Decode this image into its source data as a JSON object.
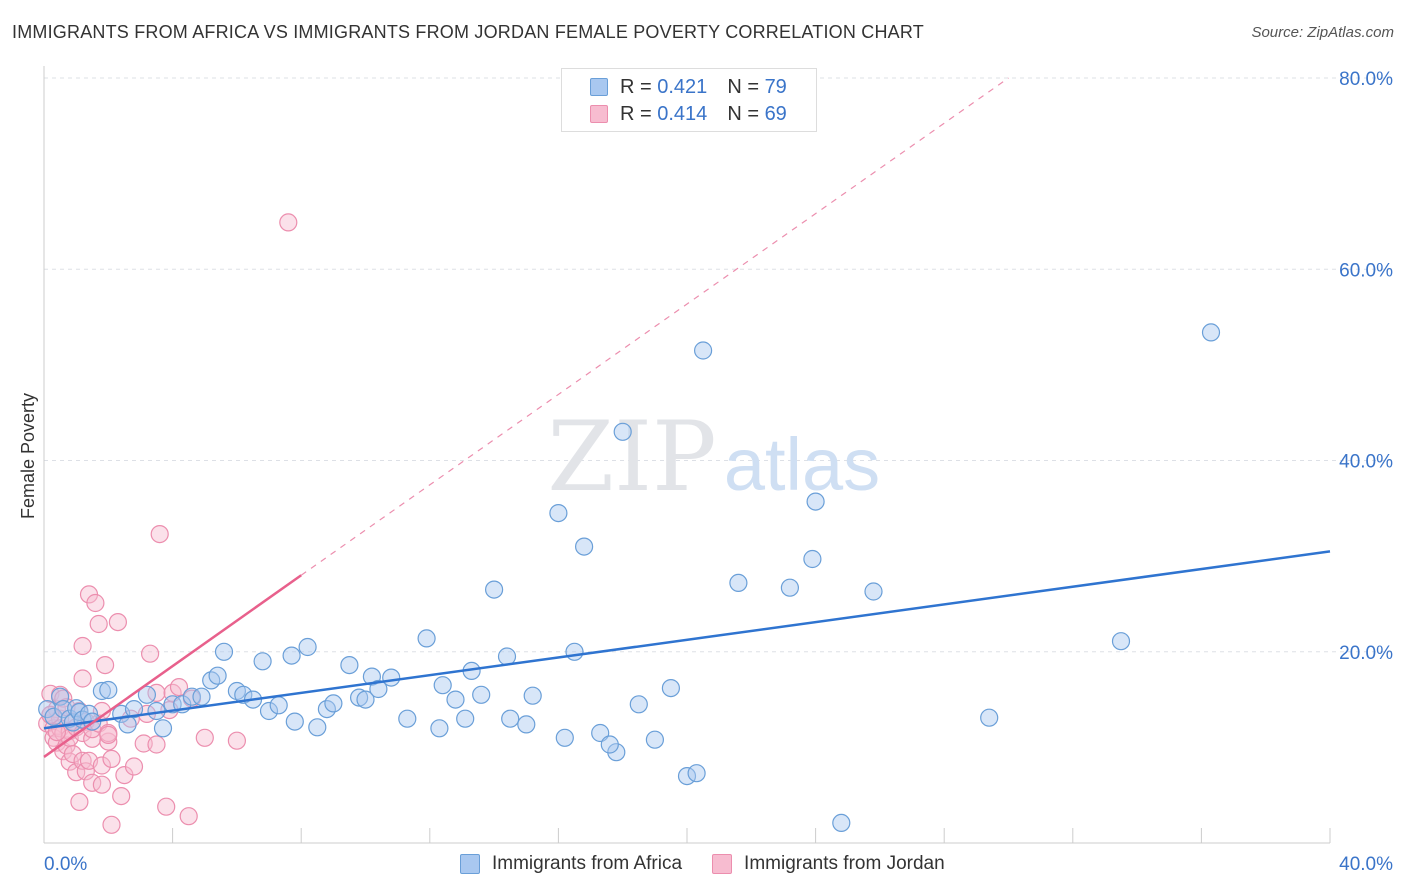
{
  "header": {
    "title": "IMMIGRANTS FROM AFRICA VS IMMIGRANTS FROM JORDAN FEMALE POVERTY CORRELATION CHART",
    "source": "Source: ZipAtlas.com"
  },
  "watermark": {
    "zip": "ZIP",
    "atlas": "atlas"
  },
  "legend": {
    "r_label": "R =",
    "n_label": "N =",
    "rows": [
      {
        "r": "0.421",
        "n": "79"
      },
      {
        "r": "0.414",
        "n": "69"
      }
    ]
  },
  "bottom_legend": {
    "africa": "Immigrants from Africa",
    "jordan": "Immigrants from Jordan"
  },
  "colors": {
    "africa_fill": "#a9c8f0",
    "africa_stroke": "#6a9fd8",
    "africa_line": "#2f74d0",
    "jordan_fill": "#f7bcd0",
    "jordan_stroke": "#ec8eae",
    "jordan_line": "#e8608c",
    "grid": "#dde0e6",
    "axis_label": "#3a74c9"
  },
  "chart_data": {
    "type": "scatter",
    "title": "IMMIGRANTS FROM AFRICA VS IMMIGRANTS FROM JORDAN FEMALE POVERTY CORRELATION CHART",
    "xlabel": "",
    "ylabel": "Female Poverty",
    "xlim": [
      0,
      40
    ],
    "ylim": [
      0,
      80
    ],
    "x_tick_labels": [
      "0.0%",
      "40.0%"
    ],
    "y_ticks": [
      20,
      40,
      60,
      80
    ],
    "y_tick_labels": [
      "20.0%",
      "40.0%",
      "60.0%",
      "80.0%"
    ],
    "grid": true,
    "series": [
      {
        "name": "Immigrants from Africa",
        "r": 0.421,
        "n": 79,
        "trend": {
          "x": [
            0,
            40
          ],
          "y": [
            12.0,
            30.5
          ]
        },
        "points": [
          [
            0.1,
            14.0
          ],
          [
            0.3,
            13.2
          ],
          [
            0.5,
            15.3
          ],
          [
            0.6,
            14.0
          ],
          [
            0.8,
            13.0
          ],
          [
            0.9,
            12.6
          ],
          [
            1.0,
            14.1
          ],
          [
            1.1,
            13.7
          ],
          [
            1.2,
            12.9
          ],
          [
            1.4,
            13.5
          ],
          [
            1.5,
            12.7
          ],
          [
            1.8,
            15.9
          ],
          [
            2.0,
            16.0
          ],
          [
            2.4,
            13.5
          ],
          [
            2.6,
            12.4
          ],
          [
            2.8,
            14.0
          ],
          [
            3.2,
            15.5
          ],
          [
            3.5,
            13.8
          ],
          [
            3.7,
            12.0
          ],
          [
            4.0,
            14.5
          ],
          [
            4.3,
            14.5
          ],
          [
            4.6,
            15.3
          ],
          [
            4.9,
            15.3
          ],
          [
            5.2,
            17.0
          ],
          [
            5.4,
            17.5
          ],
          [
            5.6,
            20.0
          ],
          [
            6.0,
            15.9
          ],
          [
            6.2,
            15.5
          ],
          [
            6.5,
            15.0
          ],
          [
            6.8,
            19.0
          ],
          [
            7.0,
            13.8
          ],
          [
            7.3,
            14.4
          ],
          [
            7.7,
            19.6
          ],
          [
            7.8,
            12.7
          ],
          [
            8.2,
            20.5
          ],
          [
            8.5,
            12.1
          ],
          [
            8.8,
            14.0
          ],
          [
            9.0,
            14.6
          ],
          [
            9.5,
            18.6
          ],
          [
            9.8,
            15.2
          ],
          [
            10.0,
            15.0
          ],
          [
            10.2,
            17.4
          ],
          [
            10.4,
            16.1
          ],
          [
            10.8,
            17.3
          ],
          [
            11.3,
            13.0
          ],
          [
            11.9,
            21.4
          ],
          [
            12.3,
            12.0
          ],
          [
            12.4,
            16.5
          ],
          [
            12.8,
            15.0
          ],
          [
            13.1,
            13.0
          ],
          [
            13.3,
            18.0
          ],
          [
            13.6,
            15.5
          ],
          [
            14.0,
            26.5
          ],
          [
            14.4,
            19.5
          ],
          [
            14.5,
            13.0
          ],
          [
            15.0,
            12.4
          ],
          [
            15.2,
            15.4
          ],
          [
            16.2,
            11.0
          ],
          [
            16.0,
            34.5
          ],
          [
            16.5,
            20.0
          ],
          [
            16.8,
            31.0
          ],
          [
            17.3,
            11.5
          ],
          [
            17.8,
            9.5
          ],
          [
            17.6,
            10.3
          ],
          [
            18.0,
            43.0
          ],
          [
            18.5,
            14.5
          ],
          [
            19.0,
            10.8
          ],
          [
            19.5,
            16.2
          ],
          [
            20.0,
            7.0
          ],
          [
            20.3,
            7.3
          ],
          [
            20.5,
            51.5
          ],
          [
            21.6,
            27.2
          ],
          [
            23.2,
            26.7
          ],
          [
            23.9,
            29.7
          ],
          [
            24.0,
            35.7
          ],
          [
            24.8,
            2.1
          ],
          [
            25.8,
            26.3
          ],
          [
            29.4,
            13.1
          ],
          [
            33.5,
            21.1
          ],
          [
            36.3,
            53.4
          ]
        ]
      },
      {
        "name": "Immigrants from Jordan",
        "r": 0.414,
        "n": 69,
        "trend": {
          "x": [
            0,
            8
          ],
          "y": [
            9.0,
            28.0
          ]
        },
        "trend_extended": {
          "x": [
            8,
            30
          ],
          "y": [
            28.0,
            80.0
          ]
        },
        "points": [
          [
            0.1,
            12.5
          ],
          [
            0.2,
            15.6
          ],
          [
            0.2,
            13.4
          ],
          [
            0.3,
            12.0
          ],
          [
            0.3,
            11.0
          ],
          [
            0.4,
            10.5
          ],
          [
            0.4,
            14.0
          ],
          [
            0.5,
            13.0
          ],
          [
            0.5,
            12.0
          ],
          [
            0.5,
            15.5
          ],
          [
            0.6,
            11.5
          ],
          [
            0.6,
            9.6
          ],
          [
            0.6,
            15.1
          ],
          [
            0.7,
            10.2
          ],
          [
            0.7,
            14.2
          ],
          [
            0.8,
            11.7
          ],
          [
            0.8,
            11.0
          ],
          [
            0.8,
            8.5
          ],
          [
            0.9,
            12.7
          ],
          [
            0.9,
            9.3
          ],
          [
            1.0,
            12.1
          ],
          [
            1.0,
            7.4
          ],
          [
            1.1,
            13.8
          ],
          [
            1.1,
            4.3
          ],
          [
            1.2,
            8.6
          ],
          [
            1.2,
            11.5
          ],
          [
            1.2,
            17.2
          ],
          [
            1.2,
            20.6
          ],
          [
            1.3,
            7.5
          ],
          [
            1.3,
            12.7
          ],
          [
            1.4,
            26.0
          ],
          [
            1.4,
            8.6
          ],
          [
            1.5,
            6.3
          ],
          [
            1.5,
            10.9
          ],
          [
            1.5,
            11.9
          ],
          [
            1.6,
            25.1
          ],
          [
            1.7,
            12.5
          ],
          [
            1.7,
            22.9
          ],
          [
            1.8,
            13.8
          ],
          [
            1.8,
            8.1
          ],
          [
            1.8,
            6.1
          ],
          [
            1.9,
            18.6
          ],
          [
            2.0,
            10.6
          ],
          [
            2.0,
            11.5
          ],
          [
            2.0,
            11.3
          ],
          [
            2.1,
            8.8
          ],
          [
            2.1,
            1.9
          ],
          [
            2.3,
            23.1
          ],
          [
            2.4,
            4.9
          ],
          [
            2.5,
            7.1
          ],
          [
            2.7,
            13.0
          ],
          [
            2.8,
            8.0
          ],
          [
            3.1,
            10.4
          ],
          [
            3.2,
            13.5
          ],
          [
            3.3,
            19.8
          ],
          [
            3.5,
            10.3
          ],
          [
            3.5,
            15.7
          ],
          [
            3.6,
            32.3
          ],
          [
            3.8,
            3.8
          ],
          [
            3.9,
            13.9
          ],
          [
            4.0,
            15.7
          ],
          [
            4.2,
            16.3
          ],
          [
            4.5,
            2.8
          ],
          [
            4.6,
            15.1
          ],
          [
            5.0,
            11.0
          ],
          [
            6.0,
            10.7
          ],
          [
            7.6,
            64.9
          ],
          [
            0.2,
            13.4
          ],
          [
            0.4,
            11.6
          ]
        ]
      }
    ]
  }
}
